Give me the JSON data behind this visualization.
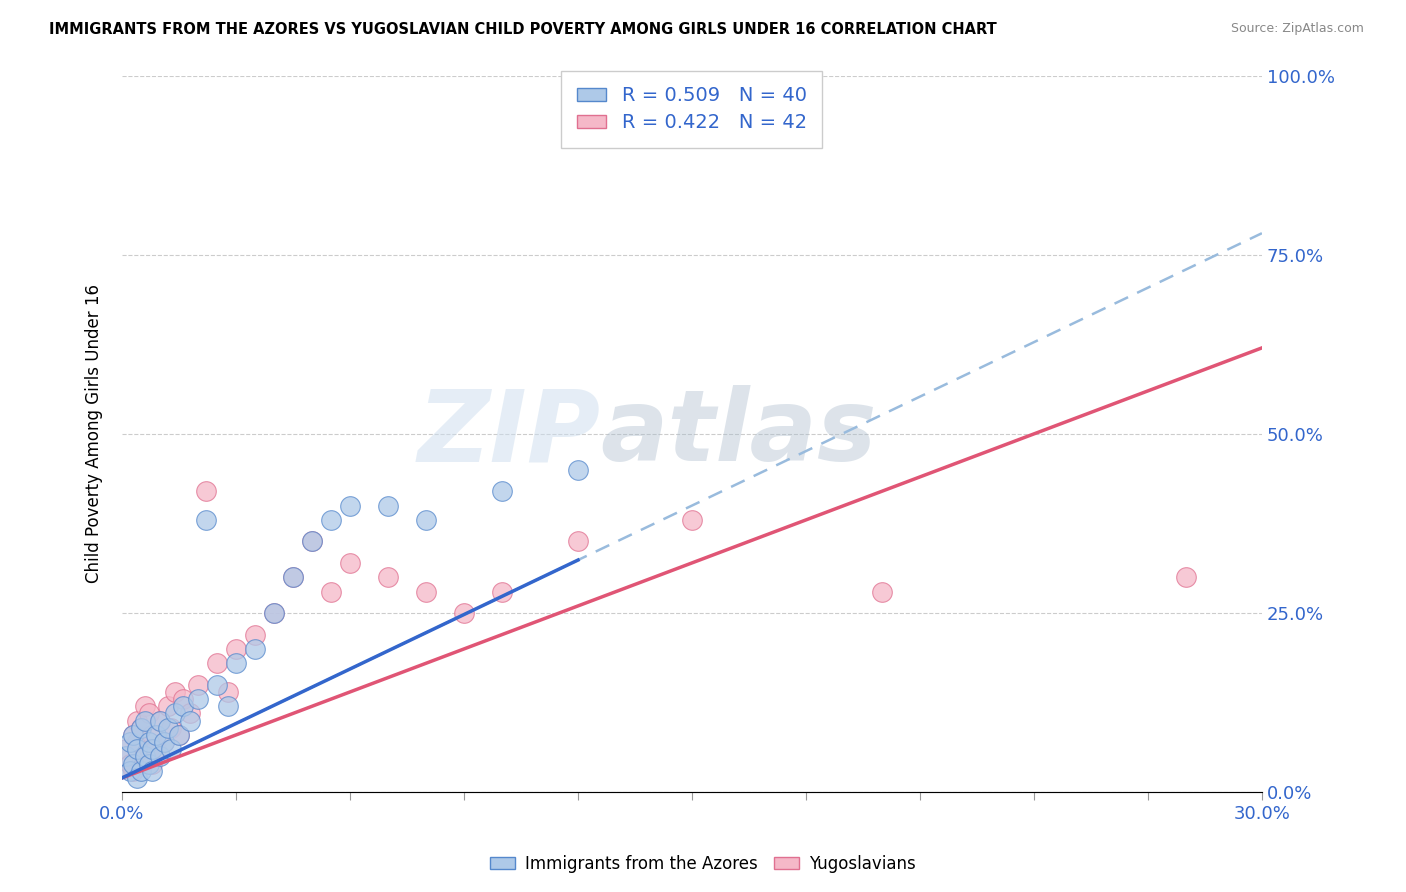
{
  "title": "IMMIGRANTS FROM THE AZORES VS YUGOSLAVIAN CHILD POVERTY AMONG GIRLS UNDER 16 CORRELATION CHART",
  "source": "Source: ZipAtlas.com",
  "ylabel": "Child Poverty Among Girls Under 16",
  "xmin": 0.0,
  "xmax": 0.3,
  "ymin": 0.0,
  "ymax": 1.0,
  "ytick_values": [
    0.0,
    0.25,
    0.5,
    0.75,
    1.0
  ],
  "series1_label": "Immigrants from the Azores",
  "series2_label": "Yugoslavians",
  "series1_color": "#aec9e8",
  "series2_color": "#f5b8c8",
  "series1_edge": "#5588cc",
  "series2_edge": "#e07090",
  "r1": 0.509,
  "n1": 40,
  "r2": 0.422,
  "n2": 42,
  "legend_r_color": "#3366cc",
  "watermark_zip": "ZIP",
  "watermark_atlas": "atlas",
  "series1_x": [
    0.001,
    0.002,
    0.002,
    0.003,
    0.003,
    0.004,
    0.004,
    0.005,
    0.005,
    0.006,
    0.006,
    0.007,
    0.007,
    0.008,
    0.008,
    0.009,
    0.01,
    0.01,
    0.011,
    0.012,
    0.013,
    0.014,
    0.015,
    0.016,
    0.018,
    0.02,
    0.022,
    0.025,
    0.028,
    0.03,
    0.035,
    0.04,
    0.045,
    0.05,
    0.055,
    0.06,
    0.07,
    0.08,
    0.1,
    0.12
  ],
  "series1_y": [
    0.05,
    0.03,
    0.07,
    0.04,
    0.08,
    0.02,
    0.06,
    0.03,
    0.09,
    0.05,
    0.1,
    0.04,
    0.07,
    0.03,
    0.06,
    0.08,
    0.05,
    0.1,
    0.07,
    0.09,
    0.06,
    0.11,
    0.08,
    0.12,
    0.1,
    0.13,
    0.38,
    0.15,
    0.12,
    0.18,
    0.2,
    0.25,
    0.3,
    0.35,
    0.38,
    0.4,
    0.4,
    0.38,
    0.42,
    0.45
  ],
  "series2_x": [
    0.001,
    0.002,
    0.003,
    0.003,
    0.004,
    0.004,
    0.005,
    0.005,
    0.006,
    0.006,
    0.007,
    0.007,
    0.008,
    0.008,
    0.009,
    0.01,
    0.011,
    0.012,
    0.013,
    0.014,
    0.015,
    0.016,
    0.018,
    0.02,
    0.022,
    0.025,
    0.028,
    0.03,
    0.035,
    0.04,
    0.045,
    0.05,
    0.055,
    0.06,
    0.07,
    0.08,
    0.09,
    0.1,
    0.12,
    0.15,
    0.2,
    0.28
  ],
  "series2_y": [
    0.06,
    0.04,
    0.08,
    0.03,
    0.07,
    0.1,
    0.04,
    0.09,
    0.05,
    0.12,
    0.06,
    0.11,
    0.04,
    0.08,
    0.06,
    0.1,
    0.07,
    0.12,
    0.09,
    0.14,
    0.08,
    0.13,
    0.11,
    0.15,
    0.42,
    0.18,
    0.14,
    0.2,
    0.22,
    0.25,
    0.3,
    0.35,
    0.28,
    0.32,
    0.3,
    0.28,
    0.25,
    0.28,
    0.35,
    0.38,
    0.28,
    0.3
  ],
  "line1_x0": 0.0,
  "line1_y0": 0.02,
  "line1_x1": 0.3,
  "line1_y1": 0.78,
  "line2_x0": 0.0,
  "line2_y0": 0.02,
  "line2_x1": 0.3,
  "line2_y1": 0.62
}
